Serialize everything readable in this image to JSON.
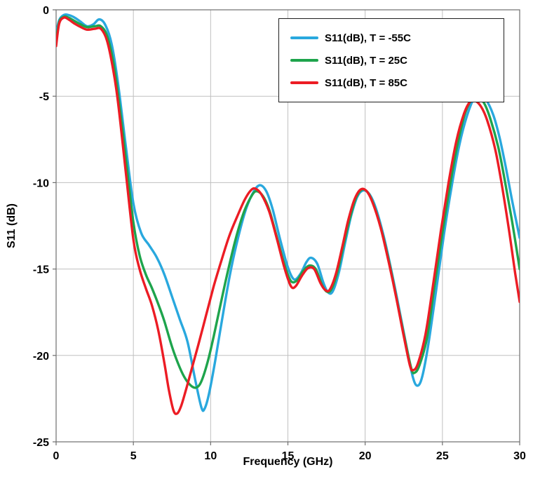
{
  "chart_data": {
    "type": "line",
    "title": "",
    "xlabel": "Frequency (GHz)",
    "ylabel": "S11 (dB)",
    "xlim": [
      0,
      30
    ],
    "ylim": [
      -25,
      0
    ],
    "x_ticks": [
      0,
      5,
      10,
      15,
      20,
      25,
      30
    ],
    "y_ticks": [
      0,
      -5,
      -10,
      -15,
      -20,
      -25
    ],
    "grid": true,
    "legend_position": "top-center-inside",
    "colors": {
      "grid": "#c0c0c0",
      "axis": "#6e6e6e",
      "text": "#000000"
    },
    "series": [
      {
        "name": "S11(dB), T = -55C",
        "color": "#29A8DE",
        "points": [
          [
            0,
            -1.4
          ],
          [
            0.2,
            -0.6
          ],
          [
            0.5,
            -0.3
          ],
          [
            0.8,
            -0.3
          ],
          [
            1.2,
            -0.45
          ],
          [
            1.6,
            -0.7
          ],
          [
            2.0,
            -0.95
          ],
          [
            2.4,
            -0.85
          ],
          [
            2.8,
            -0.55
          ],
          [
            3.2,
            -0.9
          ],
          [
            3.6,
            -2.0
          ],
          [
            4.0,
            -4.2
          ],
          [
            4.5,
            -7.8
          ],
          [
            5.0,
            -11.2
          ],
          [
            5.5,
            -12.9
          ],
          [
            6.0,
            -13.6
          ],
          [
            6.5,
            -14.3
          ],
          [
            7.0,
            -15.3
          ],
          [
            7.5,
            -16.6
          ],
          [
            8.0,
            -17.9
          ],
          [
            8.5,
            -19.2
          ],
          [
            9.0,
            -21.4
          ],
          [
            9.4,
            -23.0
          ],
          [
            9.6,
            -23.1
          ],
          [
            9.9,
            -22.2
          ],
          [
            10.3,
            -20.3
          ],
          [
            10.8,
            -17.6
          ],
          [
            11.3,
            -15.1
          ],
          [
            11.8,
            -13.1
          ],
          [
            12.3,
            -11.5
          ],
          [
            12.8,
            -10.5
          ],
          [
            13.2,
            -10.15
          ],
          [
            13.6,
            -10.5
          ],
          [
            14.0,
            -11.5
          ],
          [
            14.5,
            -13.3
          ],
          [
            15.0,
            -14.9
          ],
          [
            15.4,
            -15.6
          ],
          [
            15.8,
            -15.3
          ],
          [
            16.2,
            -14.6
          ],
          [
            16.5,
            -14.35
          ],
          [
            16.9,
            -14.7
          ],
          [
            17.3,
            -15.8
          ],
          [
            17.6,
            -16.35
          ],
          [
            17.9,
            -16.3
          ],
          [
            18.3,
            -15.2
          ],
          [
            18.7,
            -13.5
          ],
          [
            19.1,
            -11.9
          ],
          [
            19.5,
            -10.8
          ],
          [
            19.9,
            -10.45
          ],
          [
            20.3,
            -10.7
          ],
          [
            20.7,
            -11.5
          ],
          [
            21.2,
            -13.1
          ],
          [
            21.7,
            -15.1
          ],
          [
            22.2,
            -17.3
          ],
          [
            22.7,
            -19.6
          ],
          [
            23.1,
            -21.3
          ],
          [
            23.4,
            -21.75
          ],
          [
            23.7,
            -21.2
          ],
          [
            24.1,
            -19.3
          ],
          [
            24.6,
            -16.2
          ],
          [
            25.1,
            -13.0
          ],
          [
            25.6,
            -10.2
          ],
          [
            26.1,
            -7.8
          ],
          [
            26.6,
            -6.1
          ],
          [
            27.1,
            -5.0
          ],
          [
            27.4,
            -4.82
          ],
          [
            27.8,
            -5.15
          ],
          [
            28.3,
            -6.1
          ],
          [
            28.7,
            -7.4
          ],
          [
            29.1,
            -9.1
          ],
          [
            29.5,
            -11.0
          ],
          [
            30,
            -13.2
          ]
        ]
      },
      {
        "name": "S11(dB), T = 25C",
        "color": "#1EA44C",
        "points": [
          [
            0,
            -1.8
          ],
          [
            0.2,
            -0.7
          ],
          [
            0.5,
            -0.4
          ],
          [
            0.8,
            -0.45
          ],
          [
            1.2,
            -0.65
          ],
          [
            1.6,
            -0.85
          ],
          [
            2.0,
            -1.0
          ],
          [
            2.5,
            -0.95
          ],
          [
            2.9,
            -0.95
          ],
          [
            3.3,
            -1.5
          ],
          [
            3.7,
            -3.0
          ],
          [
            4.0,
            -4.8
          ],
          [
            4.5,
            -8.5
          ],
          [
            5.0,
            -12.3
          ],
          [
            5.4,
            -14.2
          ],
          [
            5.8,
            -15.3
          ],
          [
            6.2,
            -16.1
          ],
          [
            6.6,
            -17.0
          ],
          [
            7.0,
            -18.0
          ],
          [
            7.5,
            -19.5
          ],
          [
            8.0,
            -20.7
          ],
          [
            8.4,
            -21.4
          ],
          [
            8.8,
            -21.8
          ],
          [
            9.1,
            -21.85
          ],
          [
            9.4,
            -21.5
          ],
          [
            9.8,
            -20.4
          ],
          [
            10.2,
            -18.9
          ],
          [
            10.7,
            -16.8
          ],
          [
            11.2,
            -14.8
          ],
          [
            11.7,
            -13.0
          ],
          [
            12.2,
            -11.6
          ],
          [
            12.7,
            -10.7
          ],
          [
            13.0,
            -10.5
          ],
          [
            13.4,
            -10.8
          ],
          [
            13.8,
            -11.6
          ],
          [
            14.3,
            -13.2
          ],
          [
            14.8,
            -14.8
          ],
          [
            15.2,
            -15.7
          ],
          [
            15.6,
            -15.65
          ],
          [
            16.0,
            -15.1
          ],
          [
            16.4,
            -14.8
          ],
          [
            16.8,
            -15.0
          ],
          [
            17.2,
            -15.9
          ],
          [
            17.5,
            -16.3
          ],
          [
            17.8,
            -16.2
          ],
          [
            18.2,
            -15.2
          ],
          [
            18.6,
            -13.6
          ],
          [
            19.0,
            -12.1
          ],
          [
            19.4,
            -10.9
          ],
          [
            19.8,
            -10.4
          ],
          [
            20.2,
            -10.6
          ],
          [
            20.6,
            -11.4
          ],
          [
            21.1,
            -12.9
          ],
          [
            21.6,
            -14.8
          ],
          [
            22.1,
            -17.0
          ],
          [
            22.6,
            -19.2
          ],
          [
            23.0,
            -20.8
          ],
          [
            23.2,
            -21.0
          ],
          [
            23.5,
            -20.6
          ],
          [
            24.0,
            -19.0
          ],
          [
            24.5,
            -15.9
          ],
          [
            25.0,
            -12.9
          ],
          [
            25.5,
            -10.1
          ],
          [
            26.0,
            -7.7
          ],
          [
            26.5,
            -5.9
          ],
          [
            27.0,
            -5.05
          ],
          [
            27.3,
            -5.0
          ],
          [
            27.7,
            -5.4
          ],
          [
            28.1,
            -6.3
          ],
          [
            28.6,
            -7.9
          ],
          [
            29.0,
            -9.7
          ],
          [
            29.5,
            -12.2
          ],
          [
            30,
            -15.0
          ]
        ]
      },
      {
        "name": "S11(dB), T = 85C",
        "color": "#EC1C24",
        "points": [
          [
            0,
            -2.1
          ],
          [
            0.2,
            -0.8
          ],
          [
            0.5,
            -0.45
          ],
          [
            0.8,
            -0.55
          ],
          [
            1.2,
            -0.8
          ],
          [
            1.6,
            -1.0
          ],
          [
            2.0,
            -1.15
          ],
          [
            2.5,
            -1.1
          ],
          [
            2.9,
            -1.1
          ],
          [
            3.3,
            -1.8
          ],
          [
            3.7,
            -3.5
          ],
          [
            4.0,
            -5.3
          ],
          [
            4.5,
            -9.3
          ],
          [
            5.0,
            -13.3
          ],
          [
            5.4,
            -15.0
          ],
          [
            5.8,
            -16.1
          ],
          [
            6.2,
            -17.1
          ],
          [
            6.6,
            -18.5
          ],
          [
            7.0,
            -20.4
          ],
          [
            7.3,
            -22.0
          ],
          [
            7.6,
            -23.2
          ],
          [
            7.85,
            -23.35
          ],
          [
            8.1,
            -22.9
          ],
          [
            8.4,
            -22.0
          ],
          [
            8.8,
            -20.7
          ],
          [
            9.2,
            -19.4
          ],
          [
            9.7,
            -17.7
          ],
          [
            10.2,
            -16.0
          ],
          [
            10.7,
            -14.5
          ],
          [
            11.2,
            -13.1
          ],
          [
            11.7,
            -12.0
          ],
          [
            12.2,
            -11.0
          ],
          [
            12.6,
            -10.45
          ],
          [
            12.9,
            -10.35
          ],
          [
            13.3,
            -10.7
          ],
          [
            13.8,
            -11.7
          ],
          [
            14.3,
            -13.3
          ],
          [
            14.8,
            -15.0
          ],
          [
            15.2,
            -16.0
          ],
          [
            15.5,
            -16.0
          ],
          [
            15.9,
            -15.4
          ],
          [
            16.3,
            -14.95
          ],
          [
            16.7,
            -15.0
          ],
          [
            17.1,
            -15.8
          ],
          [
            17.4,
            -16.2
          ],
          [
            17.7,
            -16.2
          ],
          [
            18.1,
            -15.3
          ],
          [
            18.5,
            -13.8
          ],
          [
            18.9,
            -12.2
          ],
          [
            19.3,
            -11.0
          ],
          [
            19.7,
            -10.4
          ],
          [
            20.1,
            -10.5
          ],
          [
            20.5,
            -11.2
          ],
          [
            21.0,
            -12.6
          ],
          [
            21.5,
            -14.5
          ],
          [
            22.0,
            -16.6
          ],
          [
            22.5,
            -18.9
          ],
          [
            22.9,
            -20.6
          ],
          [
            23.1,
            -20.85
          ],
          [
            23.4,
            -20.5
          ],
          [
            23.9,
            -18.8
          ],
          [
            24.4,
            -15.9
          ],
          [
            24.9,
            -12.8
          ],
          [
            25.4,
            -10.0
          ],
          [
            25.9,
            -7.6
          ],
          [
            26.4,
            -6.0
          ],
          [
            26.8,
            -5.3
          ],
          [
            27.1,
            -5.25
          ],
          [
            27.5,
            -5.6
          ],
          [
            27.9,
            -6.4
          ],
          [
            28.4,
            -8.0
          ],
          [
            28.8,
            -9.9
          ],
          [
            29.3,
            -12.7
          ],
          [
            29.7,
            -15.2
          ],
          [
            30,
            -16.9
          ]
        ]
      }
    ]
  }
}
